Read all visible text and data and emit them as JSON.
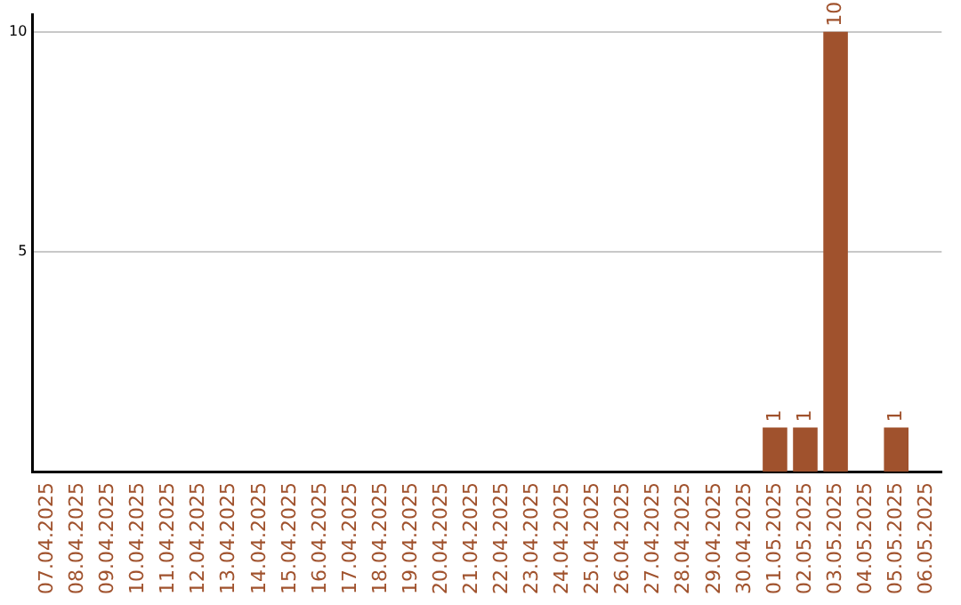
{
  "chart_data": {
    "type": "bar",
    "categories": [
      "07.04.2025",
      "08.04.2025",
      "09.04.2025",
      "10.04.2025",
      "11.04.2025",
      "12.04.2025",
      "13.04.2025",
      "14.04.2025",
      "15.04.2025",
      "16.04.2025",
      "17.04.2025",
      "18.04.2025",
      "19.04.2025",
      "20.04.2025",
      "21.04.2025",
      "22.04.2025",
      "23.04.2025",
      "24.04.2025",
      "25.04.2025",
      "26.04.2025",
      "27.04.2025",
      "28.04.2025",
      "29.04.2025",
      "30.04.2025",
      "01.05.2025",
      "02.05.2025",
      "03.05.2025",
      "04.05.2025",
      "05.05.2025",
      "06.05.2025"
    ],
    "values": [
      0,
      0,
      0,
      0,
      0,
      0,
      0,
      0,
      0,
      0,
      0,
      0,
      0,
      0,
      0,
      0,
      0,
      0,
      0,
      0,
      0,
      0,
      0,
      0,
      1,
      1,
      10,
      0,
      1,
      0
    ],
    "value_labels": [
      null,
      null,
      null,
      null,
      null,
      null,
      null,
      null,
      null,
      null,
      null,
      null,
      null,
      null,
      null,
      null,
      null,
      null,
      null,
      null,
      null,
      null,
      null,
      null,
      "1",
      "1",
      "10",
      null,
      "1",
      null
    ],
    "color": "#a0522d",
    "ylim": [
      0,
      10.4
    ],
    "yticks": [
      5,
      10
    ],
    "grid": "y",
    "legend": false
  }
}
